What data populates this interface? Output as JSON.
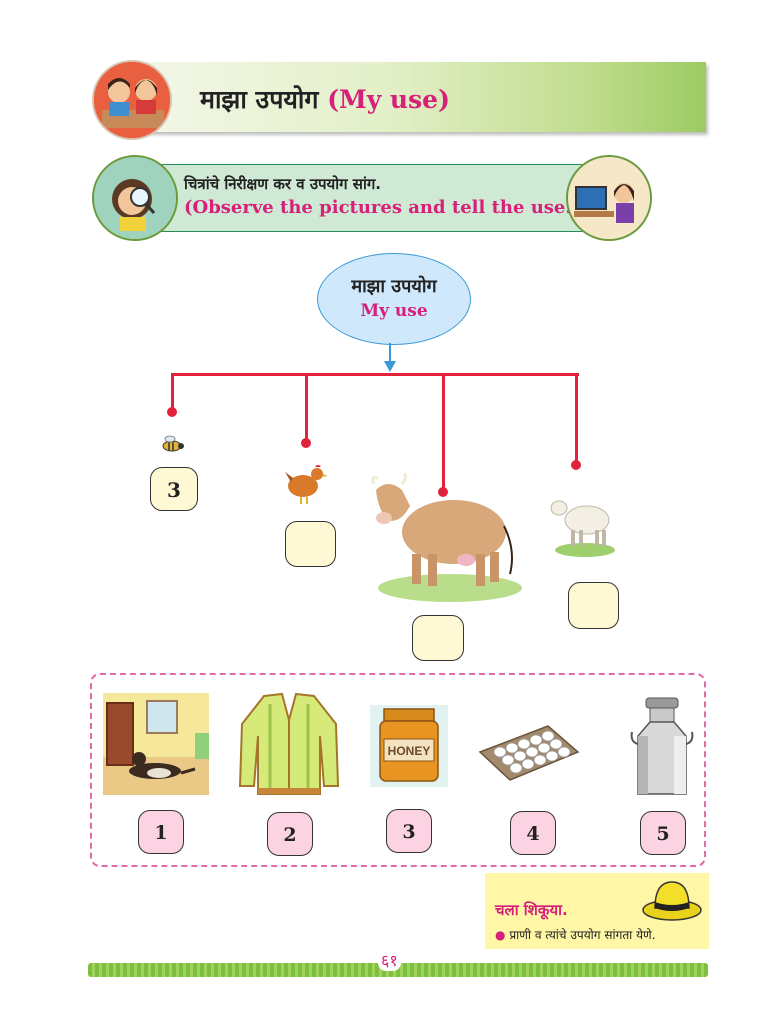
{
  "header": {
    "title_mr": "माझा उपयोग",
    "title_en": "(My use)"
  },
  "instruction": {
    "mr": "चित्रांचे निरीक्षण कर व उपयोग सांग.",
    "en": "(Observe the pictures and tell the  use.)"
  },
  "center_node": {
    "mr": "माझा उपयोग",
    "en": "My use"
  },
  "animals": [
    {
      "name": "bee",
      "answer": "3"
    },
    {
      "name": "hen",
      "answer": ""
    },
    {
      "name": "cow",
      "answer": ""
    },
    {
      "name": "sheep",
      "answer": ""
    }
  ],
  "options": [
    {
      "name": "dog",
      "number": "1"
    },
    {
      "name": "sweater",
      "number": "2"
    },
    {
      "name": "honey",
      "number": "3",
      "jar_label": "HONEY"
    },
    {
      "name": "eggs",
      "number": "4"
    },
    {
      "name": "milk-can",
      "number": "5"
    }
  ],
  "learning": {
    "title": "चला शिकूया.",
    "item": "प्राणी व त्यांचे उपयोग सांगता येणे."
  },
  "footer": {
    "page_number": "६१"
  },
  "colors": {
    "accent_pink": "#d6207a",
    "tree_red": "#e2223a",
    "node_blue": "#3b99d6"
  }
}
